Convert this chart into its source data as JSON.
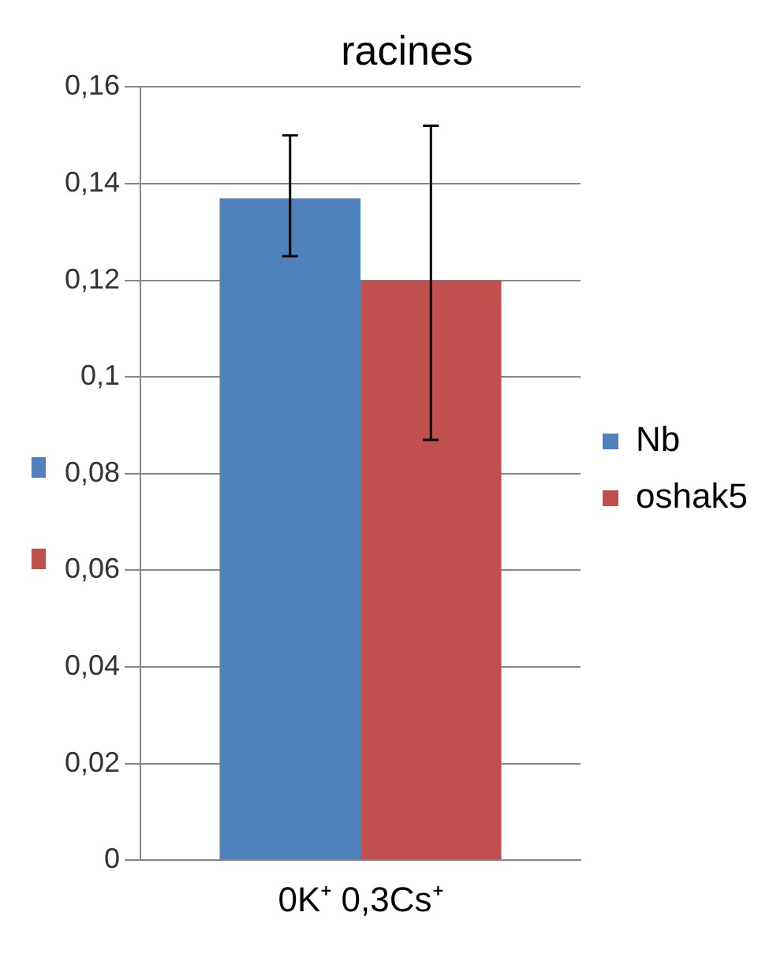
{
  "chart_data": {
    "type": "bar",
    "title": "racines",
    "categories": [
      "0K⁺ 0,3Cs⁺"
    ],
    "series": [
      {
        "name": "Nb",
        "color": "#4f81bd",
        "values": [
          0.137
        ],
        "errors": [
          [
            0.125,
            0.15
          ]
        ]
      },
      {
        "name": "oshak5",
        "color": "#c0504d",
        "values": [
          0.12
        ],
        "errors": [
          [
            0.087,
            0.152
          ]
        ]
      }
    ],
    "ylim": [
      0,
      0.16
    ],
    "yticks": [
      0,
      {
        "value": 0.02,
        "label": "0,02"
      },
      {
        "value": 0.04,
        "label": "0,04"
      },
      {
        "value": 0.06,
        "label": "0,06"
      },
      {
        "value": 0.08,
        "label": "0,08"
      },
      {
        "value": 0.1,
        "label": "0,1"
      },
      {
        "value": 0.12,
        "label": "0,12"
      },
      {
        "value": 0.14,
        "label": "0,14"
      },
      {
        "value": 0.16,
        "label": "0,16"
      }
    ],
    "grid": "y",
    "legend": "right"
  }
}
